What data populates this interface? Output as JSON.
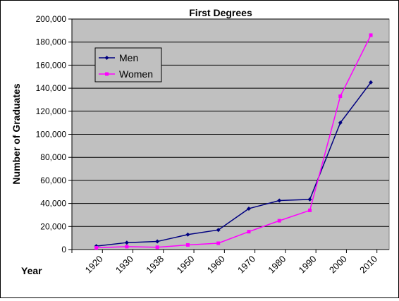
{
  "chart_data": {
    "type": "line",
    "title": "First Degrees",
    "xlabel": "Year",
    "ylabel": "Number of Graduates",
    "categories": [
      "1920",
      "1930",
      "1938",
      "1950",
      "1960",
      "1970",
      "1980",
      "1990",
      "2000",
      "2010"
    ],
    "x": [
      1924,
      1934,
      1944,
      1954,
      1964,
      1974,
      1984,
      1994,
      2004,
      2014
    ],
    "ylim": [
      0,
      200000
    ],
    "yticks": [
      "0",
      "20,000",
      "40,000",
      "60,000",
      "80,000",
      "100,000",
      "120,000",
      "140,000",
      "160,000",
      "180,000",
      "200,000"
    ],
    "grid": true,
    "legend_position": "top-left",
    "series": [
      {
        "name": "Men",
        "color": "#000080",
        "marker": "diamond",
        "values": [
          3000,
          6000,
          7000,
          13000,
          17000,
          35500,
          42500,
          43500,
          110000,
          145000
        ]
      },
      {
        "name": "Women",
        "color": "#ff00ff",
        "marker": "square",
        "values": [
          1500,
          2500,
          2000,
          4000,
          5500,
          15500,
          25000,
          34000,
          133000,
          186000
        ]
      }
    ],
    "plot_background": "#c0c0c0",
    "gridline_color": "#000000"
  }
}
